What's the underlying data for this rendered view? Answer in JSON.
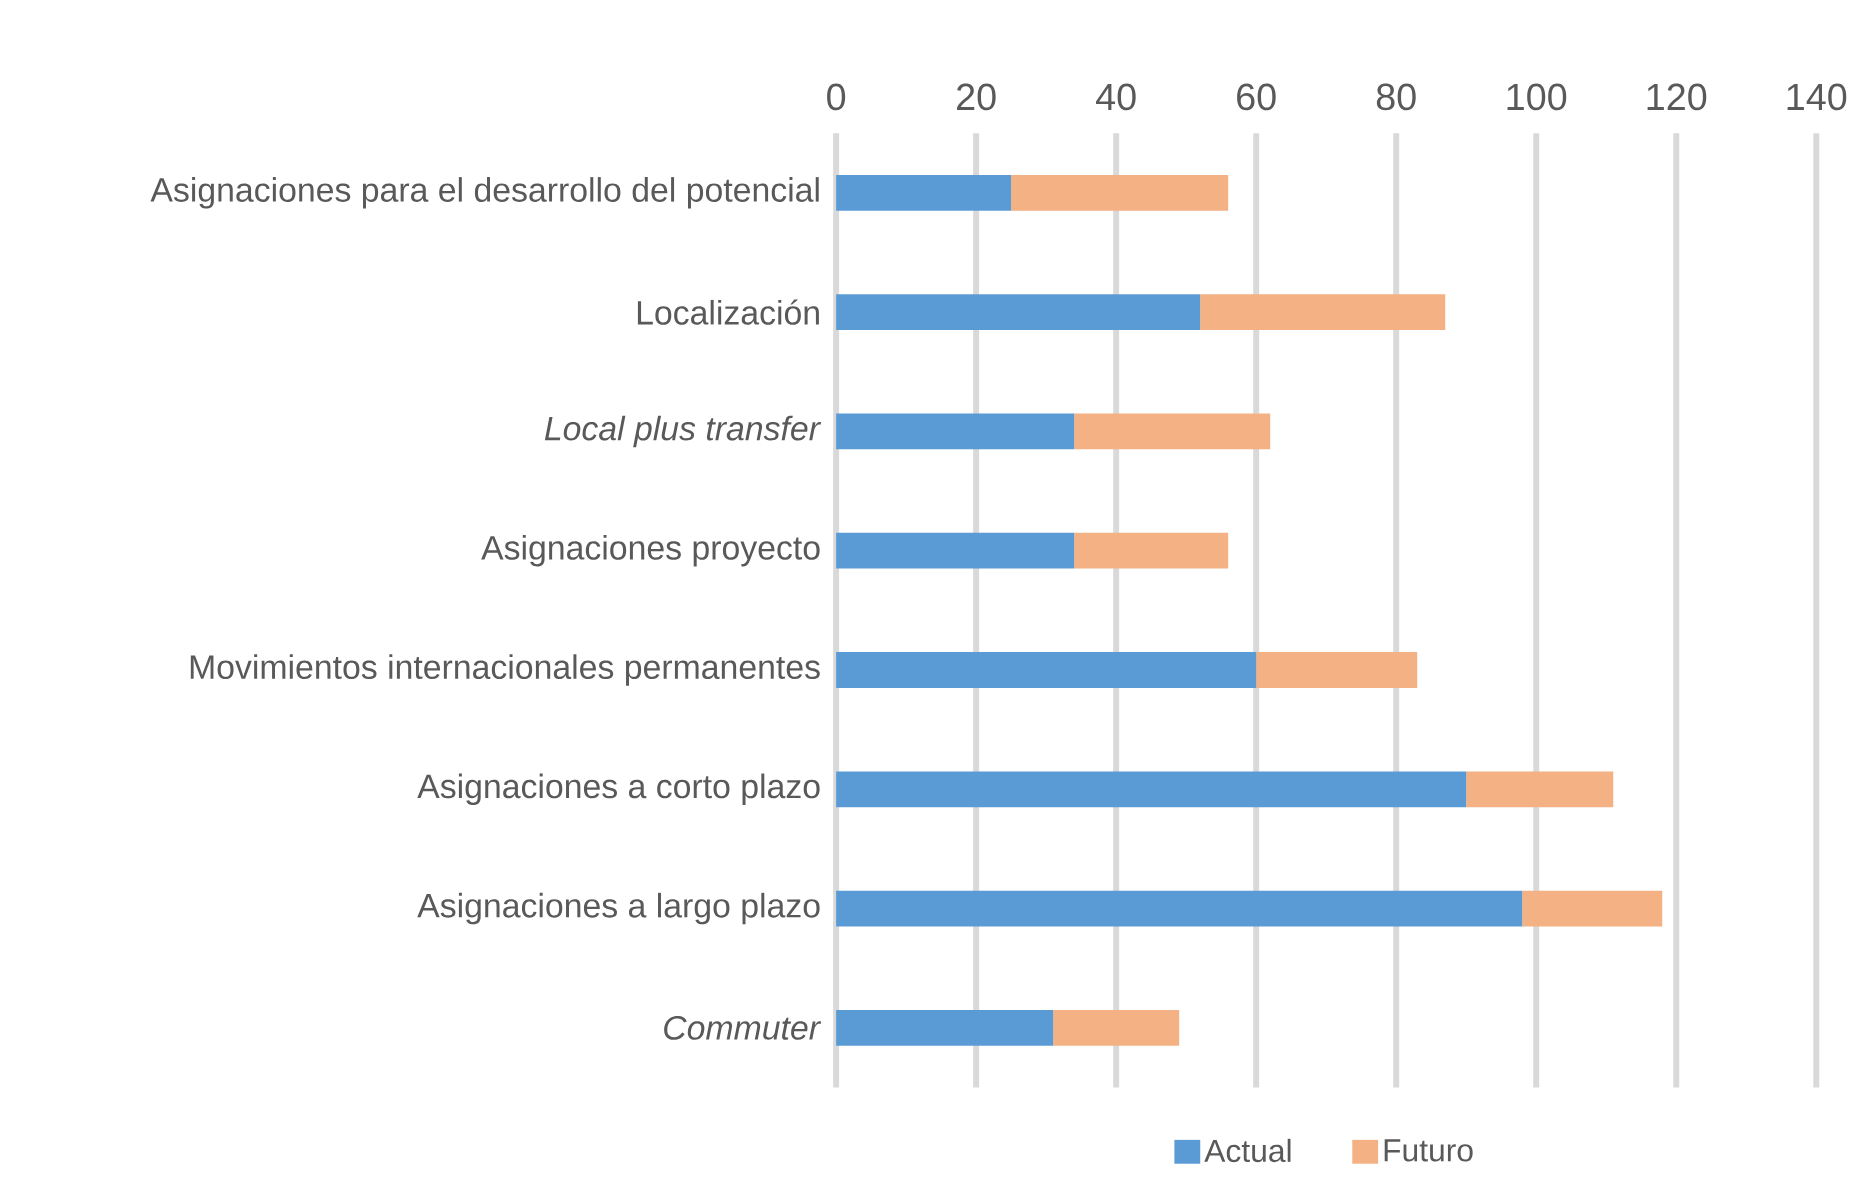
{
  "chart_data": {
    "type": "bar",
    "orientation": "horizontal",
    "stacked": true,
    "categories": [
      "Asignaciones para el desarrollo del potencial",
      "Localización",
      "*Local plus transfer*",
      "Asignaciones proyecto",
      "Movimientos internacionales permanentes",
      "Asignaciones a corto plazo",
      "Asignaciones a largo plazo",
      "*Commuter*"
    ],
    "series": [
      {
        "name": "Actual",
        "color": "#5b9bd5",
        "values": [
          25,
          52,
          34,
          34,
          60,
          90,
          98,
          31
        ]
      },
      {
        "name": "Futuro",
        "color": "#f4b183",
        "values": [
          31,
          35,
          28,
          22,
          23,
          21,
          20,
          18
        ]
      }
    ],
    "xlim": [
      0,
      140
    ],
    "xticks": [
      0,
      20,
      40,
      60,
      80,
      100,
      120,
      140
    ],
    "grid": "x",
    "legend": "bottom"
  }
}
